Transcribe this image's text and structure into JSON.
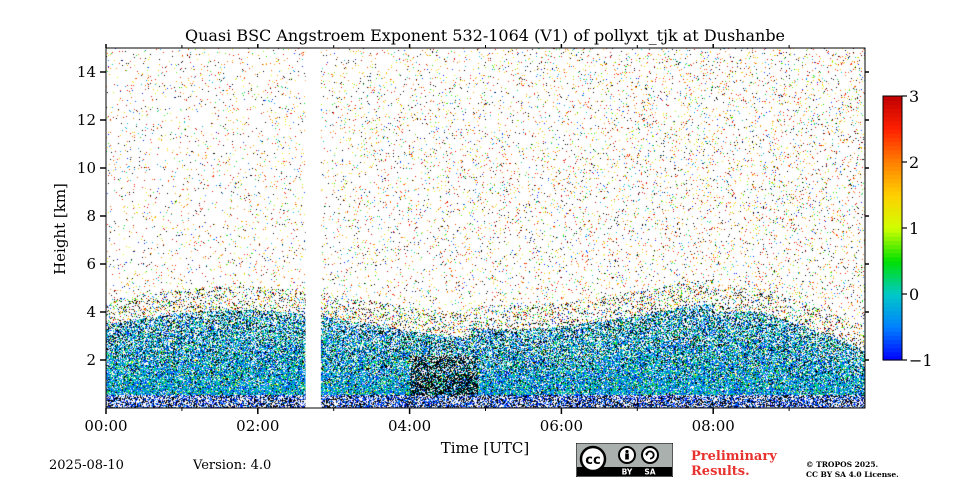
{
  "chart_data": {
    "type": "heatmap",
    "title": "Quasi BSC Angstroem Exponent 532-1064 (V1) of pollyxt_tjk at Dushanbe",
    "xlabel": "Time [UTC]",
    "ylabel": "Height [km]",
    "xlim": [
      0,
      10
    ],
    "ylim": [
      0,
      15
    ],
    "x_ticks": [
      0,
      2,
      4,
      6,
      8
    ],
    "x_tick_labels": [
      "00:00",
      "02:00",
      "04:00",
      "06:00",
      "08:00"
    ],
    "y_ticks": [
      2,
      4,
      6,
      8,
      10,
      12,
      14
    ],
    "y_tick_labels": [
      "2",
      "4",
      "6",
      "8",
      "10",
      "12",
      "14"
    ],
    "colorbar": {
      "min": -1,
      "max": 3,
      "ticks": [
        -1,
        0,
        1,
        2,
        3
      ],
      "tick_labels": [
        "−1",
        "0",
        "1",
        "2",
        "3"
      ],
      "colormap": [
        "#0000ff",
        "#0080ff",
        "#00c8c8",
        "#00e000",
        "#d0ff00",
        "#ffd000",
        "#ff8000",
        "#ff2000",
        "#c00000"
      ]
    },
    "data_gap_hours": [
      2.63,
      2.82
    ],
    "boundary_layer_top_km": 3.5,
    "annotations": [
      "Noisy scattered values above ~4 km",
      "Dense aerosol layer below ~3.5 km with values mostly -1 to 0.5"
    ]
  },
  "footer": {
    "date": "2025-08-10",
    "version": "Version: 4.0",
    "preliminary_line1": "Preliminary",
    "preliminary_line2": "Results.",
    "copyright_line1": "© TROPOS 2025.",
    "copyright_line2": "CC BY SA 4.0 License.",
    "cc_label": "cc",
    "cc_by": "BY",
    "cc_sa": "SA"
  },
  "colors": {
    "preliminary": "#e8322f",
    "cc_badge_bg": "#aab0ad"
  }
}
